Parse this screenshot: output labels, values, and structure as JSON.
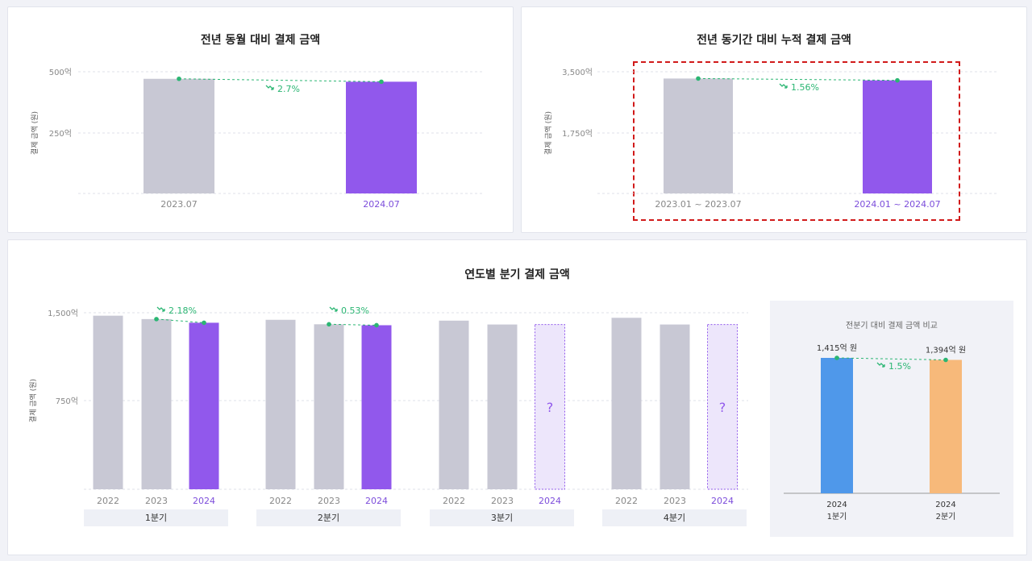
{
  "panels": {
    "monthly": {
      "title": "전년 동월 대비 결제 금액"
    },
    "cumulative": {
      "title": "전년 동기간 대비 누적 결제 금액"
    },
    "quarterly": {
      "title": "연도별 분기 결제 금액"
    }
  },
  "compare": {
    "title": "전분기 대비 결제 금액 비교"
  },
  "colors": {
    "prior": "#c8c8d4",
    "current": "#9158ec",
    "placeholder_fill": "#ede6fb",
    "placeholder_stroke": "#9158ec",
    "trend": "#2bb673",
    "q1": "#4f98ea",
    "q2": "#f7b97a",
    "highlight": "#d11a1a"
  },
  "chart_data": [
    {
      "type": "bar",
      "title": "전년 동월 대비 결제 금액",
      "ylabel": "결제 금액 (원)",
      "yticks": [
        "500억",
        "250억"
      ],
      "ylim": [
        0,
        500
      ],
      "categories": [
        "2023.07",
        "2024.07"
      ],
      "values": [
        471,
        459
      ],
      "change_label": "2.7%",
      "change_direction": "down"
    },
    {
      "type": "bar",
      "title": "전년 동기간 대비 누적 결제 금액",
      "ylabel": "결제 금액 (원)",
      "yticks": [
        "3,500억",
        "1,750억"
      ],
      "ylim": [
        0,
        3500
      ],
      "categories": [
        "2023.01 ~ 2023.07",
        "2024.01 ~ 2024.07"
      ],
      "values": [
        3305,
        3253
      ],
      "change_label": "1.56%",
      "change_direction": "down"
    },
    {
      "type": "bar",
      "title": "연도별 분기 결제 금액",
      "ylabel": "결제 금액 (원)",
      "yticks": [
        "1,500억",
        "750억"
      ],
      "ylim": [
        0,
        1500
      ],
      "groups": [
        {
          "label": "1분기",
          "years": [
            "2022",
            "2023",
            "2024"
          ],
          "values": [
            1475,
            1446,
            1415
          ],
          "change_label": "2.18%"
        },
        {
          "label": "2분기",
          "years": [
            "2022",
            "2023",
            "2024"
          ],
          "values": [
            1440,
            1402,
            1394
          ],
          "change_label": "0.53%"
        },
        {
          "label": "3분기",
          "years": [
            "2022",
            "2023",
            "2024"
          ],
          "values": [
            1433,
            1400,
            null
          ],
          "placeholder_label": "?"
        },
        {
          "label": "4분기",
          "years": [
            "2022",
            "2023",
            "2024"
          ],
          "values": [
            1457,
            1400,
            null
          ],
          "placeholder_label": "?"
        }
      ]
    },
    {
      "type": "bar",
      "title": "전분기 대비 결제 금액 비교",
      "categories": [
        {
          "year": "2024",
          "quarter": "1분기"
        },
        {
          "year": "2024",
          "quarter": "2분기"
        }
      ],
      "values": [
        1415,
        1394
      ],
      "value_labels": [
        "1,415억 원",
        "1,394억 원"
      ],
      "change_label": "1.5%",
      "change_direction": "down"
    }
  ]
}
